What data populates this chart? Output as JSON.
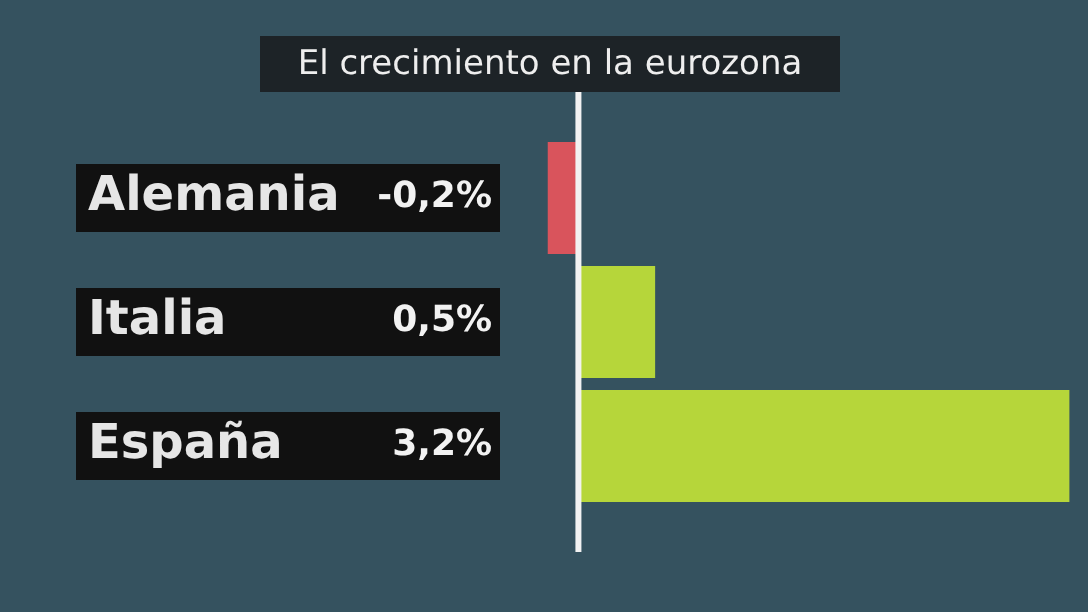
{
  "chart_data": {
    "type": "bar",
    "orientation": "horizontal",
    "title": "El crecimiento en la eurozona",
    "categories": [
      "Alemania",
      "Italia",
      "España"
    ],
    "values": [
      -0.2,
      0.5,
      3.2
    ],
    "colors": [
      "#d9545c",
      "#b6d63a",
      "#b6d63a"
    ],
    "value_labels": [
      "-0,2%",
      "0,5%",
      "3,2%"
    ],
    "legend": false
  }
}
